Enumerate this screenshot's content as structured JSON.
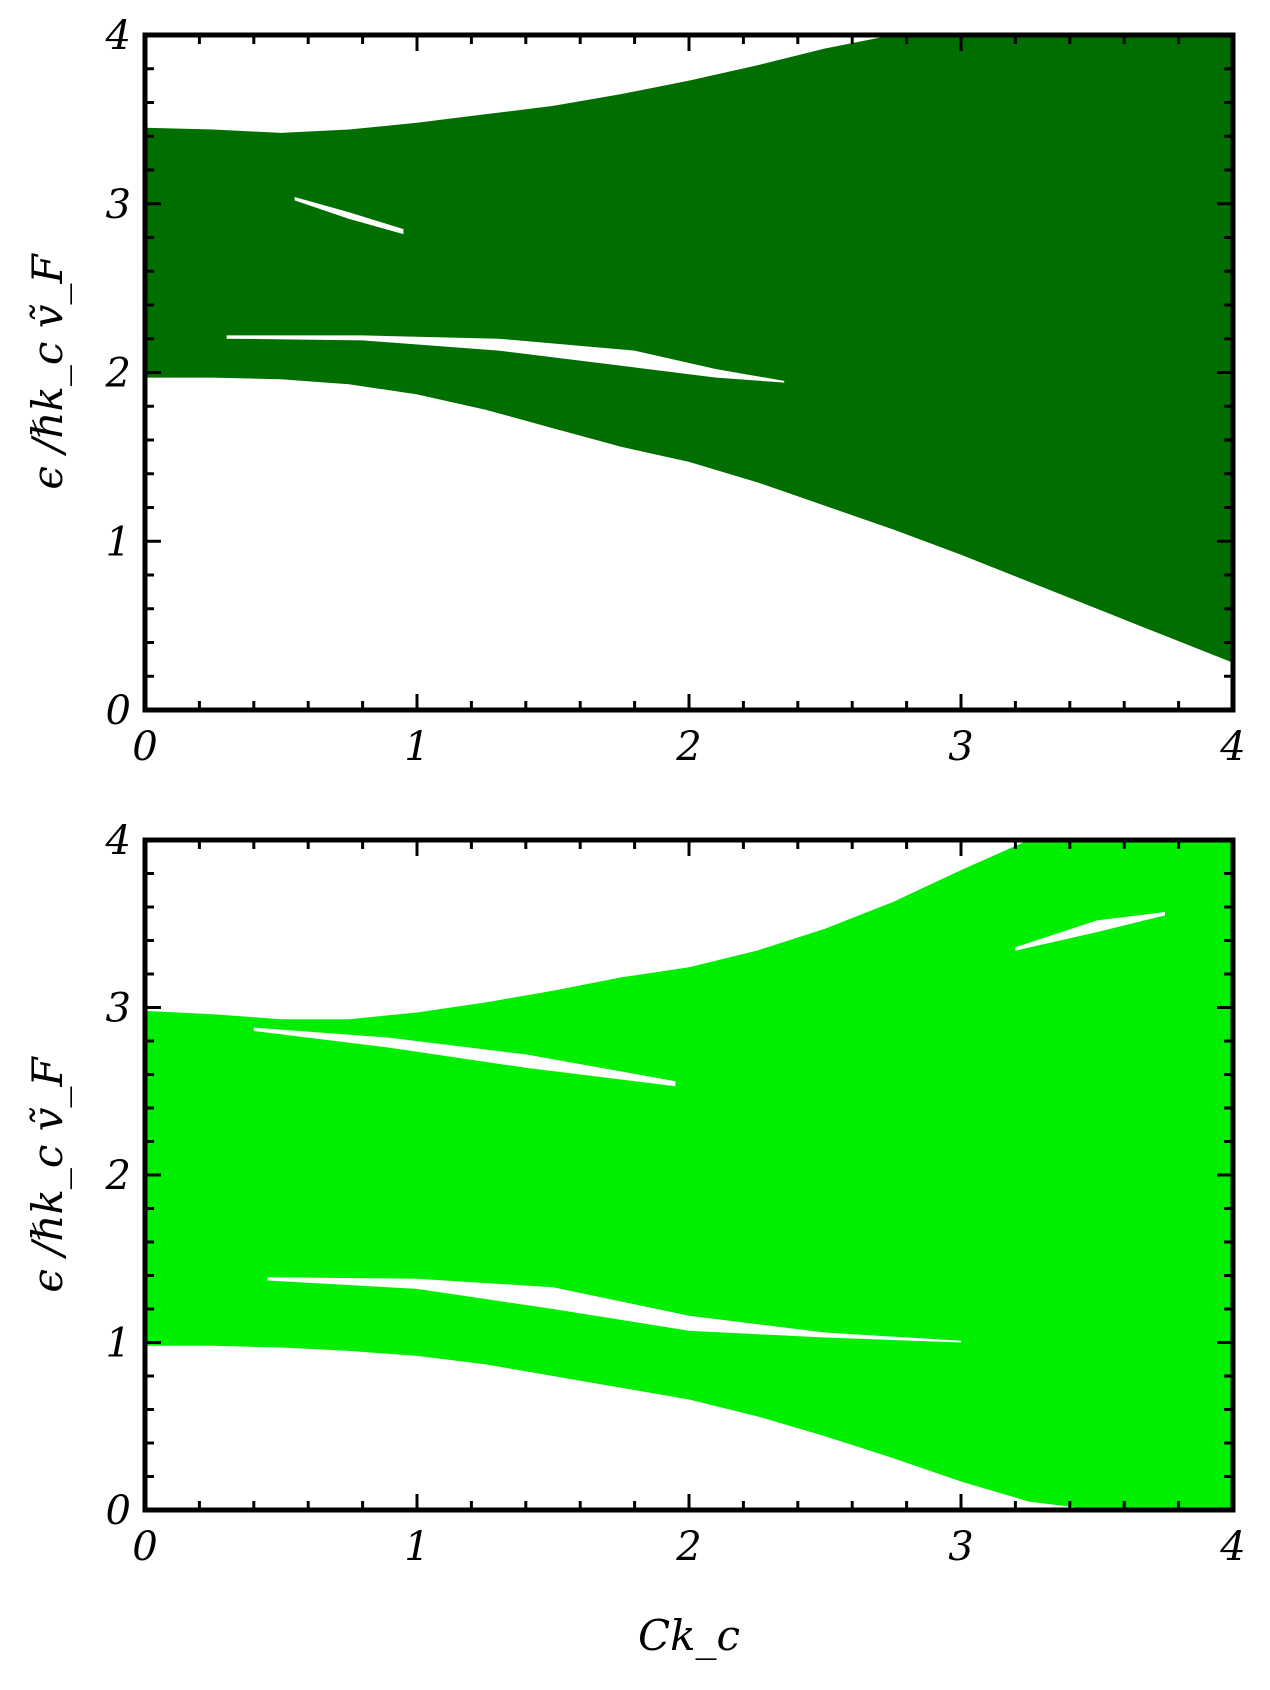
{
  "chart_data": [
    {
      "type": "area",
      "panel": "top",
      "xlim": [
        0,
        4
      ],
      "ylim": [
        0,
        4
      ],
      "x_ticks": [
        "0",
        "1",
        "2",
        "3",
        "4"
      ],
      "y_ticks": [
        "0",
        "1",
        "2",
        "3",
        "4"
      ],
      "ylabel": "ϵ /ℏk_c ṽ_F",
      "xlabel": "",
      "fill_color": "#006f00",
      "series": [
        {
          "x": [
            0.0,
            0.25,
            0.5,
            0.75,
            1.0,
            1.25,
            1.5,
            1.75,
            2.0,
            2.25,
            2.5,
            2.75,
            3.0,
            3.25,
            3.5,
            3.75,
            4.0
          ],
          "lower": [
            1.97,
            1.97,
            1.96,
            1.93,
            1.87,
            1.78,
            1.67,
            1.56,
            1.47,
            1.35,
            1.21,
            1.07,
            0.92,
            0.76,
            0.6,
            0.44,
            0.28
          ],
          "upper": [
            3.45,
            3.44,
            3.42,
            3.44,
            3.48,
            3.53,
            3.58,
            3.65,
            3.73,
            3.82,
            3.92,
            4.0,
            4.0,
            4.0,
            4.0,
            4.0,
            4.0
          ]
        }
      ],
      "gaps": [
        {
          "x": [
            0.3,
            0.8,
            1.3,
            1.8,
            2.1,
            2.35
          ],
          "lower": [
            2.2,
            2.19,
            2.13,
            2.03,
            1.97,
            1.94
          ],
          "upper": [
            2.22,
            2.22,
            2.2,
            2.13,
            2.02,
            1.95
          ]
        },
        {
          "x": [
            0.55,
            0.75,
            0.95
          ],
          "lower": [
            3.02,
            2.91,
            2.82
          ],
          "upper": [
            3.04,
            2.95,
            2.85
          ]
        }
      ]
    },
    {
      "type": "area",
      "panel": "bottom",
      "xlim": [
        0,
        4
      ],
      "ylim": [
        0,
        4
      ],
      "x_ticks": [
        "0",
        "1",
        "2",
        "3",
        "4"
      ],
      "y_ticks": [
        "0",
        "1",
        "2",
        "3",
        "4"
      ],
      "ylabel": "ϵ /ℏk_c ṽ_F",
      "xlabel": "Ck_c",
      "fill_color": "#00ef00",
      "series": [
        {
          "x": [
            0.0,
            0.25,
            0.5,
            0.75,
            1.0,
            1.25,
            1.5,
            1.75,
            2.0,
            2.25,
            2.5,
            2.75,
            3.0,
            3.25,
            3.5,
            3.75,
            4.0
          ],
          "lower": [
            0.98,
            0.98,
            0.97,
            0.95,
            0.92,
            0.87,
            0.8,
            0.73,
            0.66,
            0.56,
            0.44,
            0.31,
            0.17,
            0.05,
            0.0,
            0.0,
            0.0
          ],
          "upper": [
            2.98,
            2.96,
            2.93,
            2.93,
            2.97,
            3.03,
            3.1,
            3.18,
            3.24,
            3.34,
            3.47,
            3.63,
            3.82,
            4.0,
            4.0,
            4.0,
            4.0
          ]
        }
      ],
      "gaps": [
        {
          "x": [
            0.45,
            1.0,
            1.5,
            2.0,
            2.5,
            3.0
          ],
          "lower": [
            1.37,
            1.32,
            1.2,
            1.07,
            1.03,
            1.0
          ],
          "upper": [
            1.39,
            1.38,
            1.33,
            1.16,
            1.06,
            1.01
          ]
        },
        {
          "x": [
            0.4,
            0.9,
            1.4,
            1.95
          ],
          "lower": [
            2.86,
            2.76,
            2.64,
            2.53
          ],
          "upper": [
            2.88,
            2.82,
            2.72,
            2.56
          ]
        },
        {
          "x": [
            3.2,
            3.5,
            3.75
          ],
          "lower": [
            3.34,
            3.45,
            3.55
          ],
          "upper": [
            3.36,
            3.52,
            3.57
          ]
        }
      ]
    }
  ]
}
